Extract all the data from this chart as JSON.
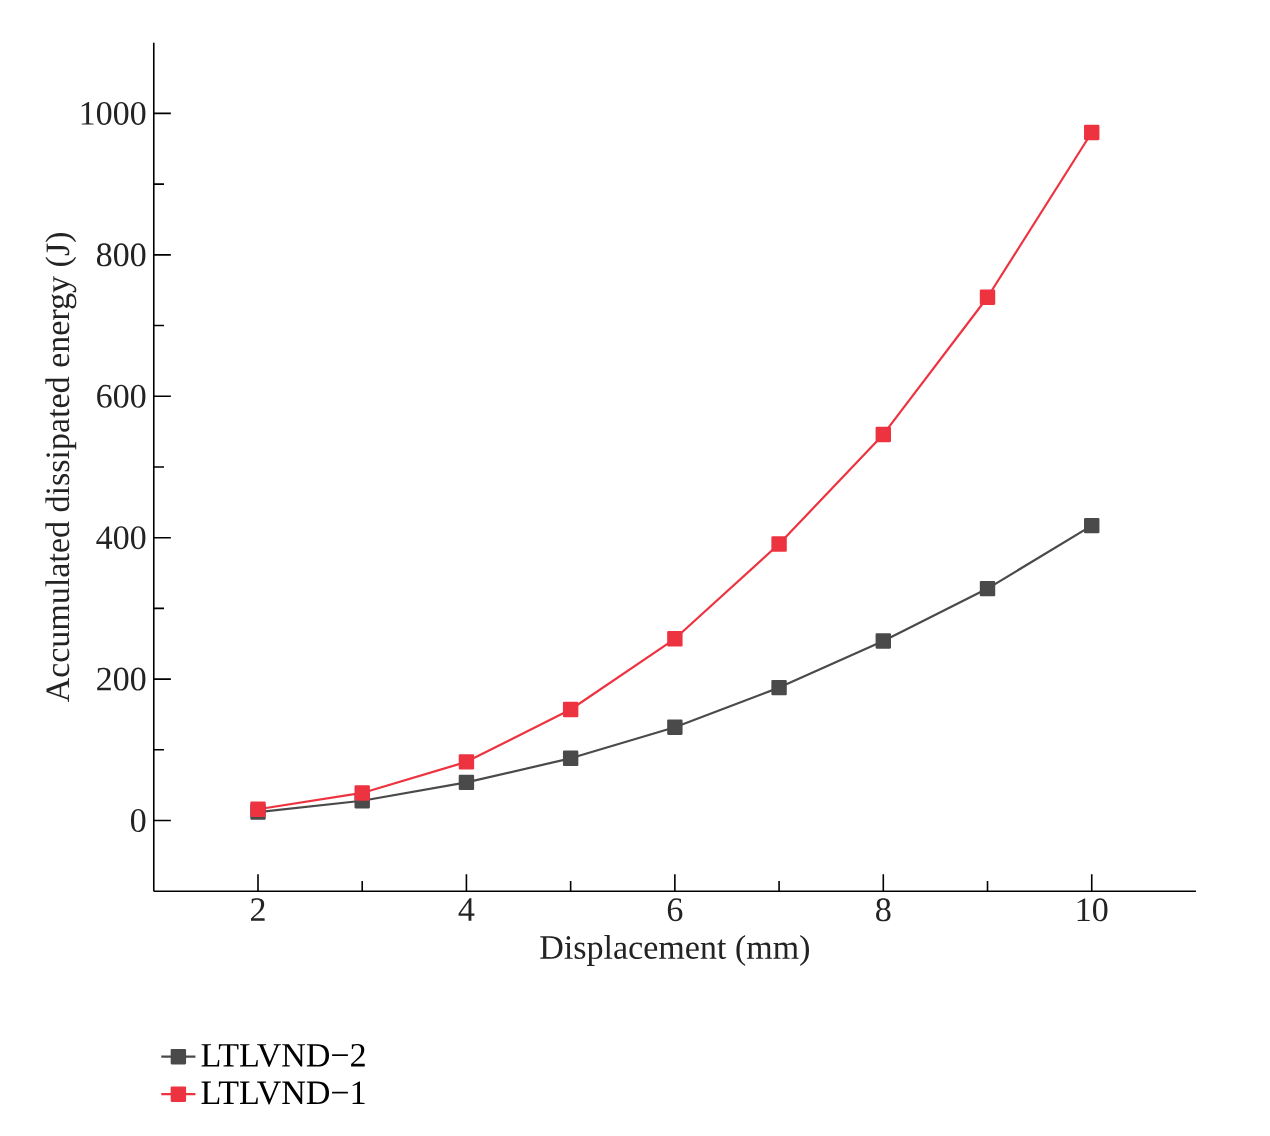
{
  "chart_data": {
    "type": "line",
    "xlabel": "Displacement (mm)",
    "ylabel": "Accumulated dissipated energy (J)",
    "x": [
      2,
      3,
      4,
      5,
      6,
      7,
      8,
      9,
      10
    ],
    "series": [
      {
        "name": "LTLVND−2",
        "color": "#4a4a4a",
        "values": [
          12,
          28,
          54,
          88,
          132,
          188,
          254,
          328,
          417
        ]
      },
      {
        "name": "LTLVND−1",
        "color": "#ee3340",
        "values": [
          16,
          39,
          83,
          157,
          257,
          391,
          546,
          740,
          973
        ]
      }
    ],
    "xlim": [
      1,
      11
    ],
    "ylim": [
      -100,
      1100
    ],
    "xticks": [
      2,
      4,
      6,
      8,
      10
    ],
    "yticks": [
      0,
      200,
      400,
      600,
      800,
      1000
    ],
    "grid": false,
    "legend": "bottom left",
    "marker": "square",
    "line_style": "solid"
  }
}
